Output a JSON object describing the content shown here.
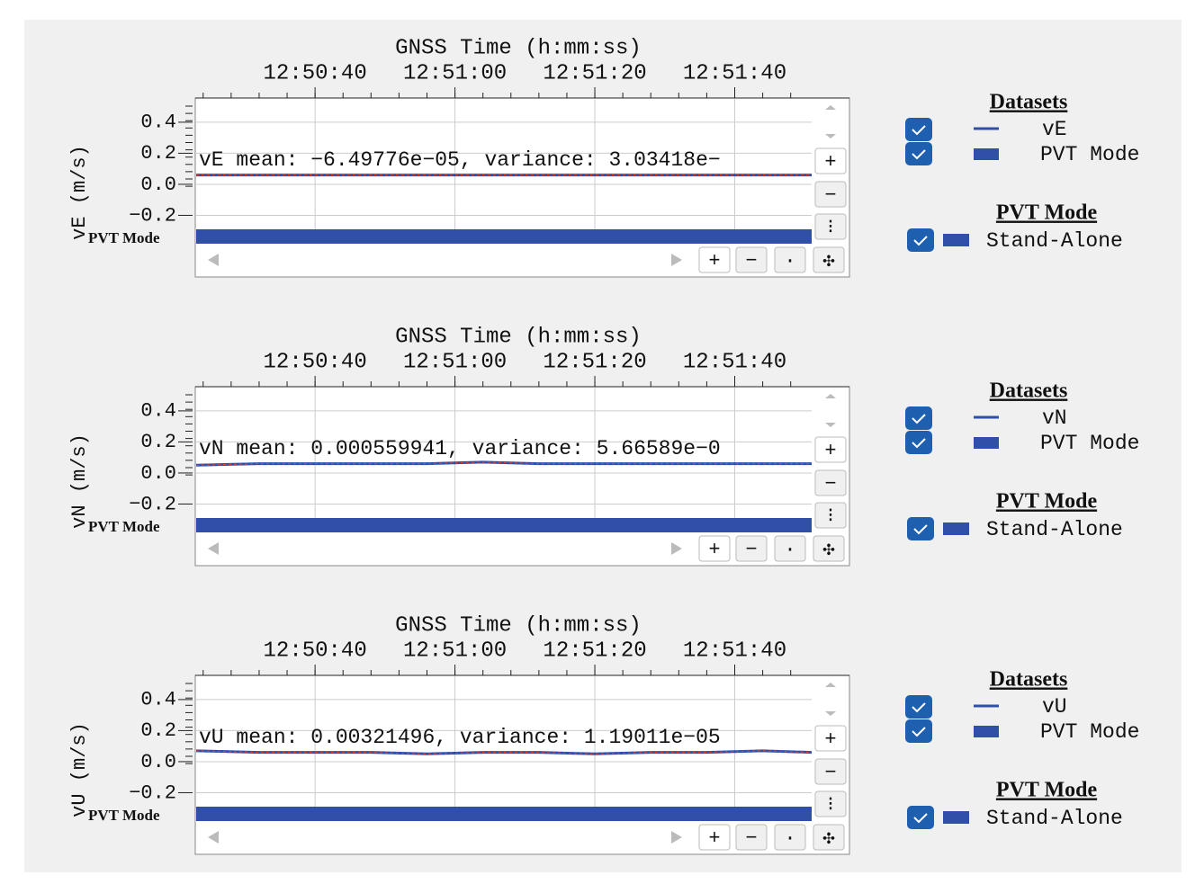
{
  "panels": [
    {
      "x_title": "GNSS Time (h:mm:ss)",
      "xlim": [
        "12:50:23",
        "12:51:51"
      ],
      "xticks": [
        "12:50:40",
        "12:51:00",
        "12:51:20",
        "12:51:40"
      ],
      "ylim": [
        -0.29,
        0.55
      ],
      "yticks": [
        0.4,
        0.2,
        {
          "value": 0,
          "label": "0.0"
        },
        {
          "value": -0.2,
          "label": "−0.2"
        }
      ],
      "y_label": "vE (m/s)",
      "band_label": "PVT Mode",
      "annotation": "vE mean: −6.49776e−05, variance: 3.03418e−",
      "x": [
        "12:50:23",
        "12:50:32",
        "12:50:40",
        "12:50:48",
        "12:50:56",
        "12:51:04",
        "12:51:12",
        "12:51:20",
        "12:51:28",
        "12:51:36",
        "12:51:44",
        "12:51:51"
      ],
      "series": [
        {
          "name": "vE",
          "color": "#2f4fa8",
          "values": [
            0.06,
            0.06,
            0.06,
            0.06,
            0.06,
            0.06,
            0.06,
            0.06,
            0.06,
            0.06,
            0.06,
            0.06
          ]
        },
        {
          "name": "PVT Mode",
          "color": "#2f4fa8"
        }
      ],
      "legend_title": "Datasets",
      "mode_title": "PVT Mode",
      "mode_items": [
        "Stand-Alone"
      ]
    },
    {
      "x_title": "GNSS Time (h:mm:ss)",
      "xlim": [
        "12:50:23",
        "12:51:51"
      ],
      "xticks": [
        "12:50:40",
        "12:51:00",
        "12:51:20",
        "12:51:40"
      ],
      "ylim": [
        -0.29,
        0.55
      ],
      "yticks": [
        0.4,
        0.2,
        {
          "value": 0,
          "label": "0.0"
        },
        {
          "value": -0.2,
          "label": "−0.2"
        }
      ],
      "y_label": "vN (m/s)",
      "band_label": "PVT Mode",
      "annotation": "vN mean: 0.000559941, variance: 5.66589e−0",
      "x": [
        "12:50:23",
        "12:50:32",
        "12:50:40",
        "12:50:48",
        "12:50:56",
        "12:51:04",
        "12:51:12",
        "12:51:20",
        "12:51:28",
        "12:51:36",
        "12:51:44",
        "12:51:51"
      ],
      "series": [
        {
          "name": "vN",
          "color": "#2f4fa8",
          "values": [
            0.05,
            0.06,
            0.06,
            0.06,
            0.06,
            0.07,
            0.06,
            0.06,
            0.06,
            0.06,
            0.06,
            0.06
          ]
        },
        {
          "name": "PVT Mode",
          "color": "#2f4fa8"
        }
      ],
      "legend_title": "Datasets",
      "mode_title": "PVT Mode",
      "mode_items": [
        "Stand-Alone"
      ]
    },
    {
      "x_title": "GNSS Time (h:mm:ss)",
      "xlim": [
        "12:50:23",
        "12:51:51"
      ],
      "xticks": [
        "12:50:40",
        "12:51:00",
        "12:51:20",
        "12:51:40"
      ],
      "ylim": [
        -0.29,
        0.55
      ],
      "yticks": [
        0.4,
        0.2,
        {
          "value": 0,
          "label": "0.0"
        },
        {
          "value": -0.2,
          "label": "−0.2"
        }
      ],
      "y_label": "vU (m/s)",
      "band_label": "PVT Mode",
      "annotation": "vU mean: 0.00321496, variance: 1.19011e−05",
      "x": [
        "12:50:23",
        "12:50:32",
        "12:50:40",
        "12:50:48",
        "12:50:56",
        "12:51:04",
        "12:51:12",
        "12:51:20",
        "12:51:28",
        "12:51:36",
        "12:51:44",
        "12:51:51"
      ],
      "series": [
        {
          "name": "vU",
          "color": "#2f4fa8",
          "values": [
            0.07,
            0.06,
            0.06,
            0.06,
            0.05,
            0.06,
            0.06,
            0.05,
            0.06,
            0.06,
            0.07,
            0.06
          ]
        },
        {
          "name": "PVT Mode",
          "color": "#2f4fa8"
        }
      ],
      "legend_title": "Datasets",
      "mode_title": "PVT Mode",
      "mode_items": [
        "Stand-Alone"
      ]
    }
  ]
}
